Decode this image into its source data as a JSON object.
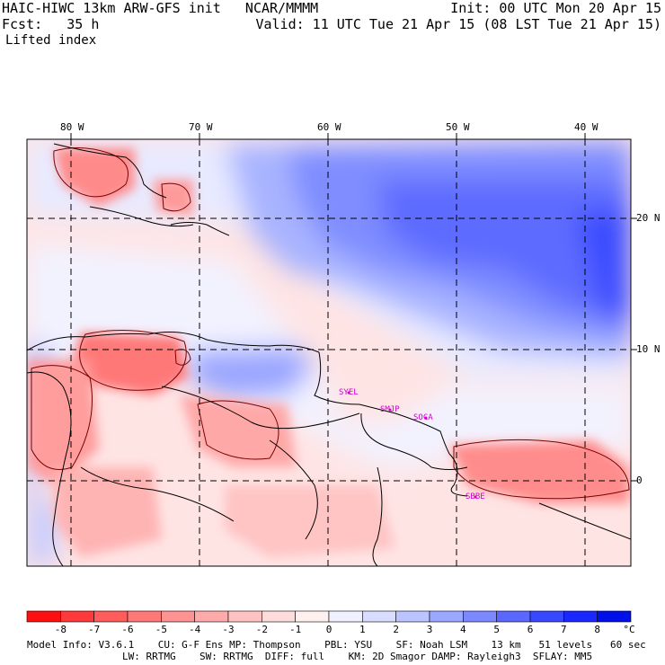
{
  "header": {
    "line1_left": "HAIC-HIWC 13km ARW-GFS init   NCAR/MMMM",
    "line1_right": "Init: 00 UTC Mon 20 Apr 15",
    "line2_left": "Fcst:   35 h",
    "line2_right": "Valid: 11 UTC Tue 21 Apr 15 (08 LST Tue 21 Apr 15)",
    "field": "Lifted index"
  },
  "map": {
    "lon_labels": [
      "80 W",
      "70 W",
      "60 W",
      "50 W",
      "40 W"
    ],
    "lat_labels": [
      "20 N",
      "10 N",
      "0"
    ],
    "stations": [
      "SYEL",
      "SMJP",
      "SOCA",
      "SBBE"
    ],
    "ocean_color": "#ffffff",
    "contour_color": "#000000"
  },
  "colorbar": {
    "labels": [
      "-8",
      "-7",
      "-6",
      "-5",
      "-4",
      "-3",
      "-2",
      "-1",
      "0",
      "1",
      "2",
      "3",
      "4",
      "5",
      "6",
      "7",
      "8",
      "°C"
    ],
    "colors": [
      "#ff1010",
      "#ff3a3a",
      "#ff5c5c",
      "#ff7878",
      "#ff9292",
      "#ffaaaa",
      "#ffc2c2",
      "#ffdcdc",
      "#fff0f0",
      "#f0f0ff",
      "#d8dcff",
      "#bcc4ff",
      "#9ca8ff",
      "#7c88ff",
      "#5a68ff",
      "#3848ff",
      "#1828ff",
      "#0010e8"
    ]
  },
  "footer": {
    "line1": "Model Info: V3.6.1    CU: G-F Ens MP: Thompson    PBL: YSU    SF: Noah LSM    13 km   51 levels   60 sec",
    "line2": "                LW: RRTMG    SW: RRTMG  DIFF: full    KM: 2D Smagor DAMP: Rayleigh3  SFLAY: MM5"
  }
}
